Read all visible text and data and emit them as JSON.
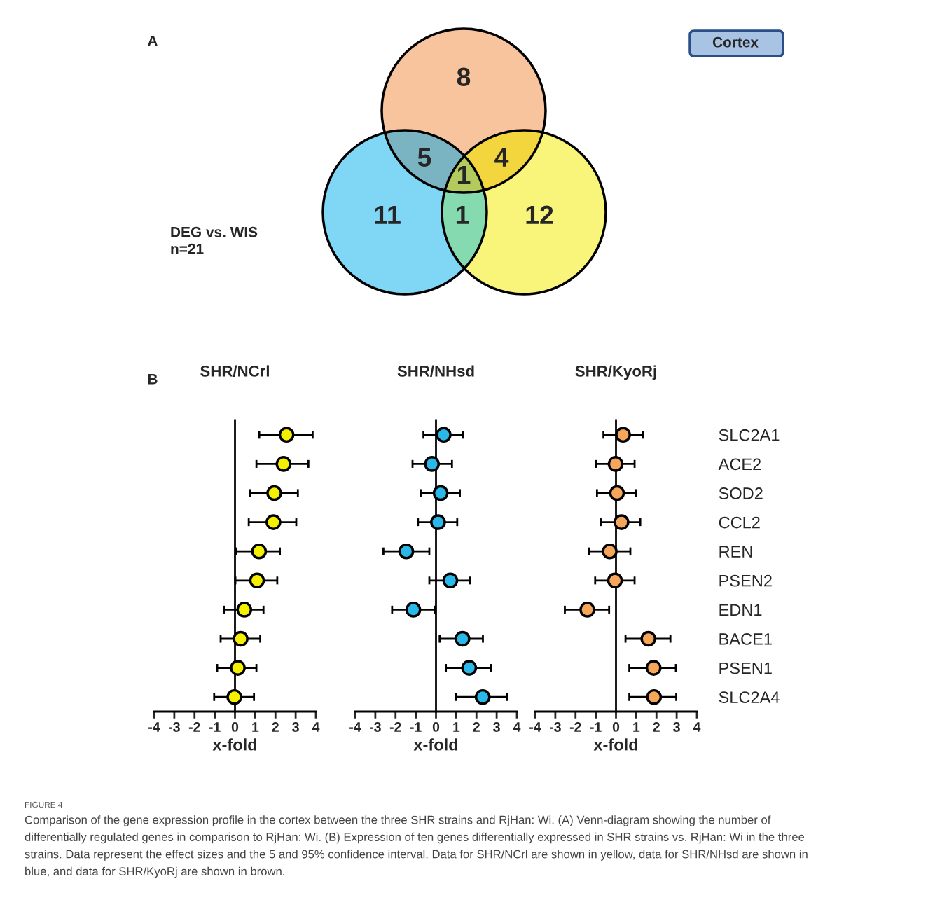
{
  "chart_data": [
    {
      "type": "other",
      "title": "Cortex",
      "colors": [
        "#f7c49e",
        "#7ab3c2",
        "#f3d53e",
        "#b3cb5c",
        "#7fd6f5",
        "#86dab0",
        "#f9f47a"
      ],
      "annotations": [
        "A",
        "8",
        "5",
        "4",
        "1",
        "11",
        "1",
        "12",
        "DEG vs. WIS\nn=21",
        "FIGURE 4",
        "Comparison of the gene expression profile in the cortex between the three SHR strains and RjHan: Wi. (A) Venn-diagram showing the number of",
        "differentially regulated genes in comparison to RjHan: Wi. (B) Expression of ten genes differentially expressed in SHR strains vs. RjHan: Wi in the three",
        "strains. Data represent the effect sizes and the 5 and 95% confidence interval. Data for SHR/NCrl are shown in yellow, data for SHR/NHsd are shown in",
        "blue, and data for SHR/KyoRj are shown in brown."
      ]
    },
    {
      "type": "scatter",
      "orientation": "horizontal",
      "title": "SHR/NCrl",
      "xlabel": "x-fold",
      "annotations": [
        "B"
      ],
      "marker": "circle",
      "categories": [
        null,
        null,
        null,
        null,
        null,
        null,
        null,
        null,
        null,
        null
      ],
      "xlim": [
        -4,
        4
      ],
      "xticks": [
        -4,
        -3,
        -2,
        -1,
        0,
        1,
        2,
        3,
        4
      ],
      "series": [
        {
          "color": "#f5f000",
          "values": [
            2.55,
            2.4,
            1.94,
            1.9,
            1.19,
            1.09,
            0.46,
            0.28,
            0.14,
            -0.03
          ],
          "errors": [
            [
              1.2,
              3.84
            ],
            [
              1.06,
              3.63
            ],
            [
              0.74,
              3.11
            ],
            [
              0.68,
              3.03
            ],
            [
              0.05,
              2.22
            ],
            [
              0.02,
              2.09
            ],
            [
              -0.55,
              1.41
            ],
            [
              -0.71,
              1.25
            ],
            [
              -0.88,
              1.06
            ],
            [
              -1.03,
              0.94
            ]
          ]
        }
      ]
    },
    {
      "type": "scatter",
      "orientation": "horizontal",
      "title": "SHR/NHsd",
      "xlabel": "x-fold",
      "marker": "circle",
      "categories": [
        null,
        null,
        null,
        null,
        null,
        null,
        null,
        null,
        null,
        null
      ],
      "xlim": [
        -4,
        4
      ],
      "xticks": [
        -4,
        -3,
        -2,
        -1,
        0,
        1,
        2,
        3,
        4
      ],
      "series": [
        {
          "color": "#2ab8e8",
          "values": [
            0.38,
            -0.2,
            0.23,
            0.1,
            -1.47,
            0.71,
            -1.12,
            1.31,
            1.64,
            2.31
          ],
          "errors": [
            [
              -0.62,
              1.34
            ],
            [
              -1.16,
              0.79
            ],
            [
              -0.76,
              1.18
            ],
            [
              -0.89,
              1.05
            ],
            [
              -2.6,
              -0.33
            ],
            [
              -0.33,
              1.69
            ],
            [
              -2.17,
              -0.05
            ],
            [
              0.18,
              2.32
            ],
            [
              0.49,
              2.73
            ],
            [
              1.0,
              3.52
            ]
          ]
        }
      ]
    },
    {
      "type": "scatter",
      "orientation": "horizontal",
      "title": "SHR/KyoRj",
      "xlabel": "x-fold",
      "marker": "circle",
      "categories": [
        "SLC2A1",
        "ACE2",
        "SOD2",
        "CCL2",
        "REN",
        "PSEN2",
        "EDN1",
        "BACE1",
        "PSEN1",
        "SLC2A4"
      ],
      "xlim": [
        -4,
        4
      ],
      "xticks": [
        -4,
        -3,
        -2,
        -1,
        0,
        1,
        2,
        3,
        4
      ],
      "series": [
        {
          "color": "#f5a65a",
          "values": [
            0.35,
            -0.02,
            0.05,
            0.27,
            -0.31,
            -0.05,
            -1.42,
            1.6,
            1.86,
            1.88
          ],
          "errors": [
            [
              -0.62,
              1.32
            ],
            [
              -1.0,
              0.92
            ],
            [
              -0.94,
              1.0
            ],
            [
              -0.76,
              1.2
            ],
            [
              -1.32,
              0.71
            ],
            [
              -1.03,
              0.92
            ],
            [
              -2.53,
              -0.34
            ],
            [
              0.47,
              2.69
            ],
            [
              0.66,
              2.96
            ],
            [
              0.66,
              2.98
            ]
          ]
        }
      ]
    }
  ]
}
